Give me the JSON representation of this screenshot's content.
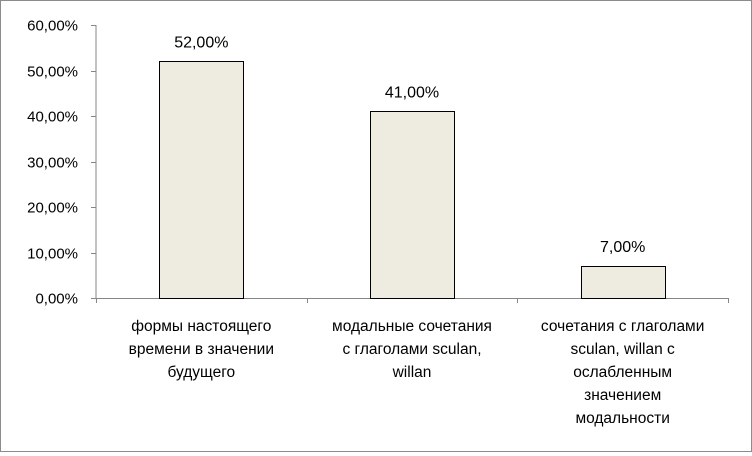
{
  "chart_data": {
    "type": "bar",
    "title": "",
    "xlabel": "",
    "ylabel": "",
    "categories": [
      "формы настоящего времени в значении будущего",
      "модальные сочетания с глаголами sculan, willan",
      "сочетания с глаголами sculan, willan с ослабленным значением модальности"
    ],
    "category_label_lines": [
      [
        "формы настоящего",
        "времени в значении",
        "будущего"
      ],
      [
        "модальные сочетания",
        "с глаголами sculan,",
        "willan"
      ],
      [
        "сочетания с глаголами",
        "sculan, willan с",
        "ослабленным",
        "значением",
        "модальности"
      ]
    ],
    "values": [
      52,
      41,
      7
    ],
    "data_labels": [
      "52,00%",
      "41,00%",
      "7,00%"
    ],
    "ylim": [
      0,
      60
    ],
    "yticks": [
      0,
      10,
      20,
      30,
      40,
      50,
      60
    ],
    "ytick_labels": [
      "0,00%",
      "10,00%",
      "20,00%",
      "30,00%",
      "40,00%",
      "50,00%",
      "60,00%"
    ],
    "gridlines": false,
    "legend": "none",
    "colors": {
      "bar_fill": "#eeece1",
      "bar_stroke": "#000000",
      "axis": "#868686",
      "frame": "#8c8c8c"
    }
  }
}
